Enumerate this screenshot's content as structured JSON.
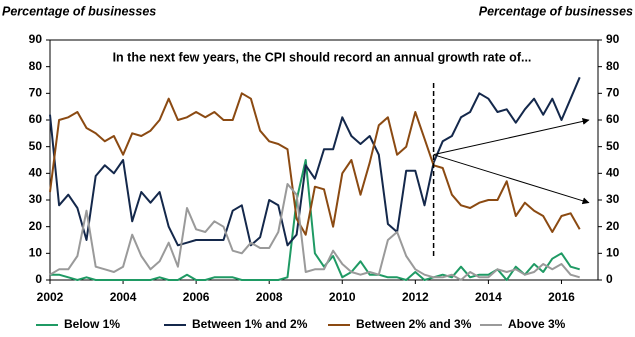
{
  "chart_data": {
    "type": "line",
    "title": "In the next few years, the CPI should record an annual growth rate of...",
    "y_label": "Percentage of businesses",
    "y2_label": "Percentage of businesses",
    "x": [
      2002,
      2002.25,
      2002.5,
      2002.75,
      2003,
      2003.25,
      2003.5,
      2003.75,
      2004,
      2004.25,
      2004.5,
      2004.75,
      2005,
      2005.25,
      2005.5,
      2005.75,
      2006,
      2006.25,
      2006.5,
      2006.75,
      2007,
      2007.25,
      2007.5,
      2007.75,
      2008,
      2008.25,
      2008.5,
      2008.75,
      2009,
      2009.25,
      2009.5,
      2009.75,
      2010,
      2010.25,
      2010.5,
      2010.75,
      2011,
      2011.25,
      2011.5,
      2011.75,
      2012,
      2012.25,
      2012.5,
      2012.75,
      2013,
      2013.25,
      2013.5,
      2013.75,
      2014,
      2014.25,
      2014.5,
      2014.75,
      2015,
      2015.25,
      2015.5,
      2015.75,
      2016,
      2016.25,
      2016.5
    ],
    "series": [
      {
        "name": "Below 1%",
        "color": "#1f9a64",
        "values": [
          2,
          2,
          1,
          0,
          1,
          0,
          0,
          0,
          0,
          0,
          0,
          0,
          1,
          0,
          0,
          2,
          0,
          0,
          1,
          1,
          1,
          0,
          0,
          0,
          0,
          0,
          1,
          30,
          45,
          10,
          5,
          9,
          1,
          3,
          7,
          2,
          2,
          1,
          1,
          0,
          3,
          0,
          1,
          2,
          1,
          5,
          1,
          2,
          2,
          4,
          0,
          5,
          2,
          6,
          3,
          8,
          10,
          5,
          4
        ]
      },
      {
        "name": "Between 1% and 2%",
        "color": "#14284b",
        "values": [
          62,
          28,
          32,
          27,
          15,
          39,
          43,
          40,
          45,
          22,
          33,
          29,
          33,
          20,
          13,
          14,
          15,
          15,
          15,
          15,
          26,
          28,
          13,
          16,
          30,
          28,
          13,
          17,
          43,
          38,
          49,
          49,
          61,
          54,
          51,
          54,
          47,
          21,
          18,
          41,
          41,
          28,
          44,
          52,
          54,
          61,
          63,
          70,
          68,
          63,
          64,
          59,
          64,
          68,
          62,
          68,
          60,
          68,
          76
        ]
      },
      {
        "name": "Between 2% and 3%",
        "color": "#8b4a12",
        "values": [
          33,
          60,
          61,
          63,
          57,
          55,
          52,
          54,
          47,
          55,
          54,
          56,
          60,
          68,
          60,
          61,
          63,
          61,
          63,
          60,
          60,
          70,
          68,
          56,
          52,
          51,
          49,
          23,
          17,
          35,
          34,
          20,
          40,
          45,
          32,
          44,
          58,
          61,
          47,
          50,
          63,
          53,
          43,
          42,
          32,
          28,
          27,
          29,
          30,
          30,
          37,
          24,
          29,
          26,
          24,
          18,
          24,
          25,
          19
        ]
      },
      {
        "name": "Above 3%",
        "color": "#9a9a9a",
        "values": [
          2,
          4,
          4,
          9,
          26,
          5,
          4,
          3,
          5,
          17,
          9,
          4,
          7,
          14,
          5,
          27,
          19,
          18,
          22,
          20,
          11,
          10,
          14,
          12,
          12,
          18,
          36,
          32,
          3,
          4,
          4,
          11,
          6,
          3,
          2,
          3,
          2,
          15,
          18,
          9,
          4,
          2,
          1,
          1,
          2,
          0,
          3,
          1,
          1,
          4,
          3,
          4,
          2,
          3,
          6,
          4,
          6,
          2,
          1
        ]
      }
    ],
    "xlim": [
      2002,
      2017
    ],
    "xticks": [
      2002,
      2004,
      2006,
      2008,
      2010,
      2012,
      2014,
      2016
    ],
    "ylim": [
      0,
      90
    ],
    "yticks": [
      0,
      10,
      20,
      30,
      40,
      50,
      60,
      70,
      80,
      90
    ],
    "y2lim": [
      0,
      90
    ],
    "y2ticks": [
      0,
      10,
      20,
      30,
      40,
      50,
      60,
      70,
      80,
      90
    ],
    "marker": {
      "x": 2012.5,
      "y": [
        9,
        74
      ]
    },
    "arrows": [
      {
        "from": [
          2012.5,
          47
        ],
        "to": [
          2016.75,
          60
        ]
      },
      {
        "from": [
          2012.5,
          47
        ],
        "to": [
          2016.75,
          29
        ]
      }
    ]
  }
}
